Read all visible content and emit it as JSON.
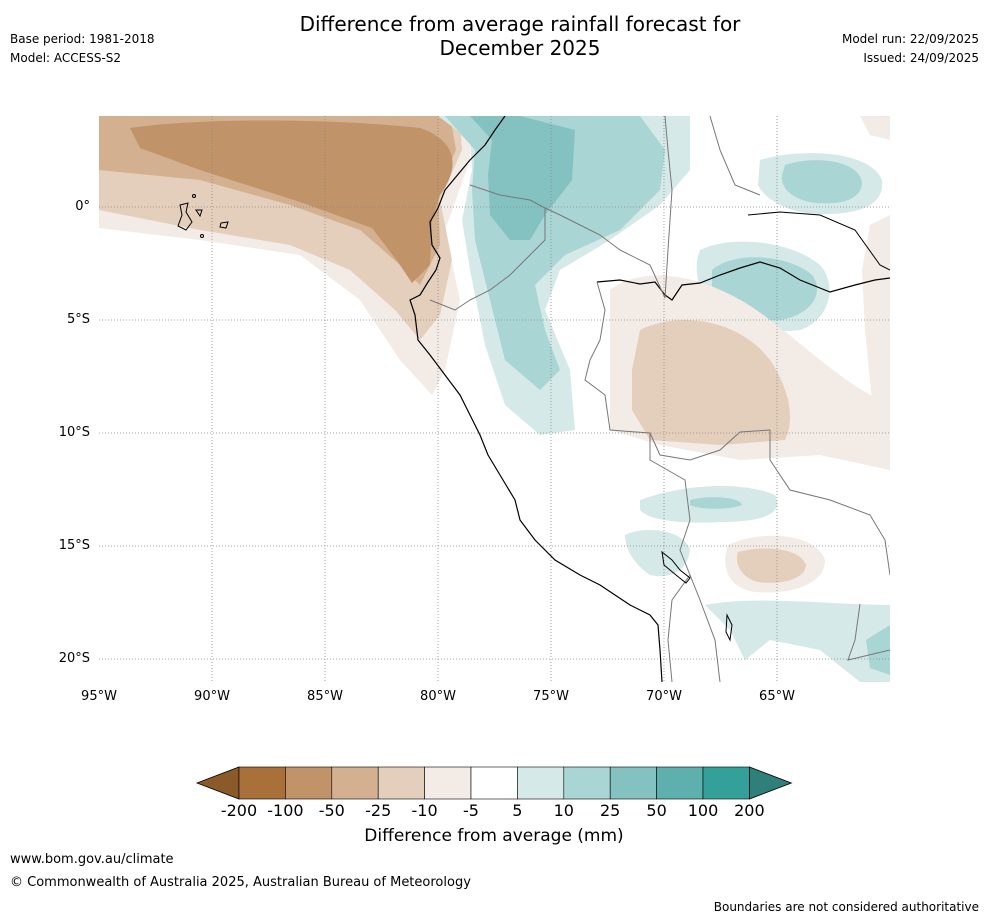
{
  "header": {
    "title_line1": "Difference from average rainfall forecast for",
    "title_line2": "December 2025",
    "base_period": "Base period: 1981-2018",
    "model": "Model: ACCESS-S2",
    "model_run": "Model run: 22/09/2025",
    "issued": "Issued: 24/09/2025"
  },
  "map": {
    "lat_labels": [
      "0°",
      "5°S",
      "10°S",
      "15°S",
      "20°S"
    ],
    "lon_labels": [
      "95°W",
      "90°W",
      "85°W",
      "80°W",
      "75°W",
      "70°W",
      "65°W"
    ]
  },
  "colorbar": {
    "ticks": [
      "-200",
      "-100",
      "-50",
      "-25",
      "-10",
      "-5",
      "5",
      "10",
      "25",
      "50",
      "100",
      "200"
    ],
    "colors": [
      "#a9703a",
      "#c09368",
      "#d3b08f",
      "#e4cfbd",
      "#f3ebe6",
      "#ffffff",
      "#d5e9e8",
      "#a9d5d4",
      "#84c2c1",
      "#5eb0ae",
      "#34a09a"
    ],
    "under_color": "#8b5a2b",
    "over_color": "#2f7f7a",
    "label": "Difference from average (mm)"
  },
  "footer": {
    "url": "www.bom.gov.au/climate",
    "copyright": "© Commonwealth of Australia 2025, Australian Bureau of Meteorology",
    "disclaimer": "Boundaries are not considered authoritative"
  }
}
